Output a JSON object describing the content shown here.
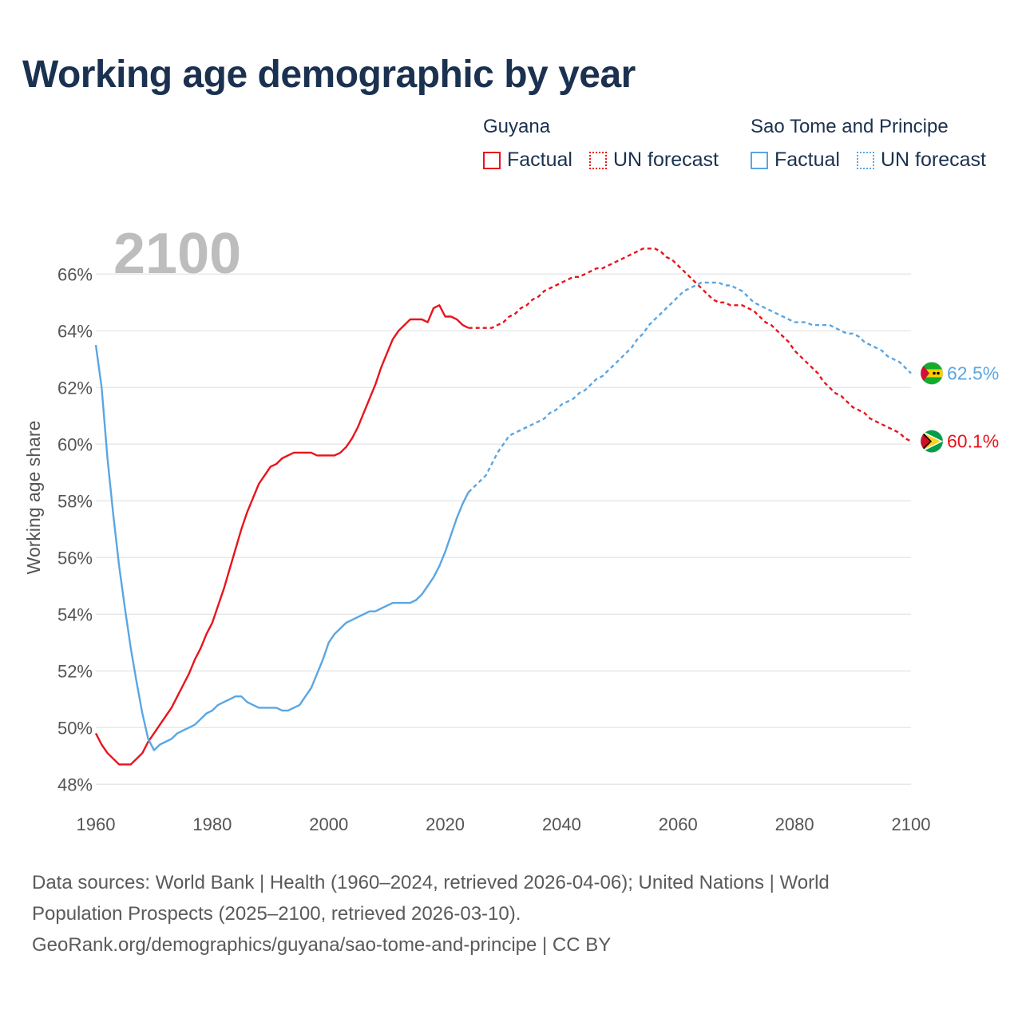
{
  "title": "Working age demographic by year",
  "legend": {
    "groups": [
      {
        "country": "Guyana",
        "color": "#e8141c",
        "factual_label": "Factual",
        "forecast_label": "UN forecast"
      },
      {
        "country": "Sao Tome and Principe",
        "color": "#5aa6e3",
        "factual_label": "Factual",
        "forecast_label": "UN forecast"
      }
    ]
  },
  "sources": {
    "line1": "Data sources: World Bank | Health (1960–2024, retrieved 2026-04-06); United Nations | World",
    "line2": "Population Prospects (2025–2100, retrieved 2026-03-10).",
    "line3": "GeoRank.org/demographics/guyana/sao-tome-and-principe | CC BY"
  },
  "chart_data": {
    "type": "line",
    "title": "Working age demographic by year",
    "xlabel": "",
    "ylabel": "Working age share",
    "year_overlay": "2100",
    "xlim": [
      1960,
      2100
    ],
    "ylim": [
      47.5,
      67.5
    ],
    "x_ticks": [
      1960,
      1980,
      2000,
      2020,
      2040,
      2060,
      2080,
      2100
    ],
    "x_tick_labels": [
      "1960",
      "1980",
      "2000",
      "2020",
      "2040",
      "2060",
      "2080",
      "2100"
    ],
    "y_ticks": [
      48,
      50,
      52,
      54,
      56,
      58,
      60,
      62,
      64,
      66
    ],
    "y_tick_labels": [
      "48%",
      "50%",
      "52%",
      "54%",
      "56%",
      "58%",
      "60%",
      "62%",
      "64%",
      "66%"
    ],
    "grid": true,
    "factual_end_year": 2024,
    "series": [
      {
        "name": "Guyana",
        "color": "#e8141c",
        "end_label": "60.1%",
        "points": [
          [
            1960,
            49.8
          ],
          [
            1961,
            49.4
          ],
          [
            1962,
            49.1
          ],
          [
            1963,
            48.9
          ],
          [
            1964,
            48.7
          ],
          [
            1965,
            48.7
          ],
          [
            1966,
            48.7
          ],
          [
            1967,
            48.9
          ],
          [
            1968,
            49.1
          ],
          [
            1969,
            49.5
          ],
          [
            1970,
            49.8
          ],
          [
            1971,
            50.1
          ],
          [
            1972,
            50.4
          ],
          [
            1973,
            50.7
          ],
          [
            1974,
            51.1
          ],
          [
            1975,
            51.5
          ],
          [
            1976,
            51.9
          ],
          [
            1977,
            52.4
          ],
          [
            1978,
            52.8
          ],
          [
            1979,
            53.3
          ],
          [
            1980,
            53.7
          ],
          [
            1981,
            54.3
          ],
          [
            1982,
            54.9
          ],
          [
            1983,
            55.6
          ],
          [
            1984,
            56.3
          ],
          [
            1985,
            57.0
          ],
          [
            1986,
            57.6
          ],
          [
            1987,
            58.1
          ],
          [
            1988,
            58.6
          ],
          [
            1989,
            58.9
          ],
          [
            1990,
            59.2
          ],
          [
            1991,
            59.3
          ],
          [
            1992,
            59.5
          ],
          [
            1993,
            59.6
          ],
          [
            1994,
            59.7
          ],
          [
            1995,
            59.7
          ],
          [
            1996,
            59.7
          ],
          [
            1997,
            59.7
          ],
          [
            1998,
            59.6
          ],
          [
            1999,
            59.6
          ],
          [
            2000,
            59.6
          ],
          [
            2001,
            59.6
          ],
          [
            2002,
            59.7
          ],
          [
            2003,
            59.9
          ],
          [
            2004,
            60.2
          ],
          [
            2005,
            60.6
          ],
          [
            2006,
            61.1
          ],
          [
            2007,
            61.6
          ],
          [
            2008,
            62.1
          ],
          [
            2009,
            62.7
          ],
          [
            2010,
            63.2
          ],
          [
            2011,
            63.7
          ],
          [
            2012,
            64.0
          ],
          [
            2013,
            64.2
          ],
          [
            2014,
            64.4
          ],
          [
            2015,
            64.4
          ],
          [
            2016,
            64.4
          ],
          [
            2017,
            64.3
          ],
          [
            2018,
            64.8
          ],
          [
            2019,
            64.9
          ],
          [
            2020,
            64.5
          ],
          [
            2021,
            64.5
          ],
          [
            2022,
            64.4
          ],
          [
            2023,
            64.2
          ],
          [
            2024,
            64.1
          ],
          [
            2025,
            64.1
          ],
          [
            2026,
            64.1
          ],
          [
            2027,
            64.1
          ],
          [
            2028,
            64.1
          ],
          [
            2029,
            64.2
          ],
          [
            2030,
            64.3
          ],
          [
            2031,
            64.5
          ],
          [
            2032,
            64.6
          ],
          [
            2033,
            64.8
          ],
          [
            2034,
            64.9
          ],
          [
            2035,
            65.1
          ],
          [
            2036,
            65.2
          ],
          [
            2037,
            65.4
          ],
          [
            2038,
            65.5
          ],
          [
            2039,
            65.6
          ],
          [
            2040,
            65.7
          ],
          [
            2041,
            65.8
          ],
          [
            2042,
            65.9
          ],
          [
            2043,
            65.9
          ],
          [
            2044,
            66.0
          ],
          [
            2045,
            66.1
          ],
          [
            2046,
            66.2
          ],
          [
            2047,
            66.2
          ],
          [
            2048,
            66.3
          ],
          [
            2049,
            66.4
          ],
          [
            2050,
            66.5
          ],
          [
            2051,
            66.6
          ],
          [
            2052,
            66.7
          ],
          [
            2053,
            66.8
          ],
          [
            2054,
            66.9
          ],
          [
            2055,
            66.9
          ],
          [
            2056,
            66.9
          ],
          [
            2057,
            66.8
          ],
          [
            2058,
            66.6
          ],
          [
            2059,
            66.5
          ],
          [
            2060,
            66.3
          ],
          [
            2061,
            66.1
          ],
          [
            2062,
            65.9
          ],
          [
            2063,
            65.7
          ],
          [
            2064,
            65.5
          ],
          [
            2065,
            65.3
          ],
          [
            2066,
            65.1
          ],
          [
            2067,
            65.0
          ],
          [
            2068,
            65.0
          ],
          [
            2069,
            64.9
          ],
          [
            2070,
            64.9
          ],
          [
            2071,
            64.9
          ],
          [
            2072,
            64.8
          ],
          [
            2073,
            64.7
          ],
          [
            2074,
            64.5
          ],
          [
            2075,
            64.3
          ],
          [
            2076,
            64.2
          ],
          [
            2077,
            64.0
          ],
          [
            2078,
            63.8
          ],
          [
            2079,
            63.6
          ],
          [
            2080,
            63.3
          ],
          [
            2081,
            63.1
          ],
          [
            2082,
            62.9
          ],
          [
            2083,
            62.7
          ],
          [
            2084,
            62.5
          ],
          [
            2085,
            62.2
          ],
          [
            2086,
            62.0
          ],
          [
            2087,
            61.8
          ],
          [
            2088,
            61.7
          ],
          [
            2089,
            61.5
          ],
          [
            2090,
            61.3
          ],
          [
            2091,
            61.2
          ],
          [
            2092,
            61.1
          ],
          [
            2093,
            60.9
          ],
          [
            2094,
            60.8
          ],
          [
            2095,
            60.7
          ],
          [
            2096,
            60.6
          ],
          [
            2097,
            60.5
          ],
          [
            2098,
            60.4
          ],
          [
            2099,
            60.2
          ],
          [
            2100,
            60.1
          ]
        ]
      },
      {
        "name": "Sao Tome and Principe",
        "color": "#5aa6e3",
        "end_label": "62.5%",
        "points": [
          [
            1960,
            63.5
          ],
          [
            1961,
            62.0
          ],
          [
            1962,
            59.5
          ],
          [
            1963,
            57.5
          ],
          [
            1964,
            55.7
          ],
          [
            1965,
            54.2
          ],
          [
            1966,
            52.8
          ],
          [
            1967,
            51.6
          ],
          [
            1968,
            50.5
          ],
          [
            1969,
            49.6
          ],
          [
            1970,
            49.2
          ],
          [
            1971,
            49.4
          ],
          [
            1972,
            49.5
          ],
          [
            1973,
            49.6
          ],
          [
            1974,
            49.8
          ],
          [
            1975,
            49.9
          ],
          [
            1976,
            50.0
          ],
          [
            1977,
            50.1
          ],
          [
            1978,
            50.3
          ],
          [
            1979,
            50.5
          ],
          [
            1980,
            50.6
          ],
          [
            1981,
            50.8
          ],
          [
            1982,
            50.9
          ],
          [
            1983,
            51.0
          ],
          [
            1984,
            51.1
          ],
          [
            1985,
            51.1
          ],
          [
            1986,
            50.9
          ],
          [
            1987,
            50.8
          ],
          [
            1988,
            50.7
          ],
          [
            1989,
            50.7
          ],
          [
            1990,
            50.7
          ],
          [
            1991,
            50.7
          ],
          [
            1992,
            50.6
          ],
          [
            1993,
            50.6
          ],
          [
            1994,
            50.7
          ],
          [
            1995,
            50.8
          ],
          [
            1996,
            51.1
          ],
          [
            1997,
            51.4
          ],
          [
            1998,
            51.9
          ],
          [
            1999,
            52.4
          ],
          [
            2000,
            53.0
          ],
          [
            2001,
            53.3
          ],
          [
            2002,
            53.5
          ],
          [
            2003,
            53.7
          ],
          [
            2004,
            53.8
          ],
          [
            2005,
            53.9
          ],
          [
            2006,
            54.0
          ],
          [
            2007,
            54.1
          ],
          [
            2008,
            54.1
          ],
          [
            2009,
            54.2
          ],
          [
            2010,
            54.3
          ],
          [
            2011,
            54.4
          ],
          [
            2012,
            54.4
          ],
          [
            2013,
            54.4
          ],
          [
            2014,
            54.4
          ],
          [
            2015,
            54.5
          ],
          [
            2016,
            54.7
          ],
          [
            2017,
            55.0
          ],
          [
            2018,
            55.3
          ],
          [
            2019,
            55.7
          ],
          [
            2020,
            56.2
          ],
          [
            2021,
            56.8
          ],
          [
            2022,
            57.4
          ],
          [
            2023,
            57.9
          ],
          [
            2024,
            58.3
          ],
          [
            2025,
            58.5
          ],
          [
            2026,
            58.7
          ],
          [
            2027,
            58.9
          ],
          [
            2028,
            59.3
          ],
          [
            2029,
            59.7
          ],
          [
            2030,
            60.0
          ],
          [
            2031,
            60.3
          ],
          [
            2032,
            60.4
          ],
          [
            2033,
            60.5
          ],
          [
            2034,
            60.6
          ],
          [
            2035,
            60.7
          ],
          [
            2036,
            60.8
          ],
          [
            2037,
            60.9
          ],
          [
            2038,
            61.1
          ],
          [
            2039,
            61.2
          ],
          [
            2040,
            61.4
          ],
          [
            2041,
            61.5
          ],
          [
            2042,
            61.6
          ],
          [
            2043,
            61.8
          ],
          [
            2044,
            61.9
          ],
          [
            2045,
            62.1
          ],
          [
            2046,
            62.3
          ],
          [
            2047,
            62.4
          ],
          [
            2048,
            62.6
          ],
          [
            2049,
            62.8
          ],
          [
            2050,
            63.0
          ],
          [
            2051,
            63.2
          ],
          [
            2052,
            63.4
          ],
          [
            2053,
            63.7
          ],
          [
            2054,
            63.9
          ],
          [
            2055,
            64.2
          ],
          [
            2056,
            64.4
          ],
          [
            2057,
            64.6
          ],
          [
            2058,
            64.8
          ],
          [
            2059,
            65.0
          ],
          [
            2060,
            65.2
          ],
          [
            2061,
            65.4
          ],
          [
            2062,
            65.5
          ],
          [
            2063,
            65.6
          ],
          [
            2064,
            65.7
          ],
          [
            2065,
            65.7
          ],
          [
            2066,
            65.7
          ],
          [
            2067,
            65.7
          ],
          [
            2068,
            65.6
          ],
          [
            2069,
            65.6
          ],
          [
            2070,
            65.5
          ],
          [
            2071,
            65.4
          ],
          [
            2072,
            65.2
          ],
          [
            2073,
            65.0
          ],
          [
            2074,
            64.9
          ],
          [
            2075,
            64.8
          ],
          [
            2076,
            64.7
          ],
          [
            2077,
            64.6
          ],
          [
            2078,
            64.5
          ],
          [
            2079,
            64.4
          ],
          [
            2080,
            64.3
          ],
          [
            2081,
            64.3
          ],
          [
            2082,
            64.3
          ],
          [
            2083,
            64.2
          ],
          [
            2084,
            64.2
          ],
          [
            2085,
            64.2
          ],
          [
            2086,
            64.2
          ],
          [
            2087,
            64.1
          ],
          [
            2088,
            64.0
          ],
          [
            2089,
            63.9
          ],
          [
            2090,
            63.9
          ],
          [
            2091,
            63.8
          ],
          [
            2092,
            63.6
          ],
          [
            2093,
            63.5
          ],
          [
            2094,
            63.4
          ],
          [
            2095,
            63.3
          ],
          [
            2096,
            63.1
          ],
          [
            2097,
            63.0
          ],
          [
            2098,
            62.9
          ],
          [
            2099,
            62.7
          ],
          [
            2100,
            62.5
          ]
        ]
      }
    ]
  },
  "flag_icons": [
    {
      "country": "Guyana",
      "icon": "guyana-flag-icon",
      "colors": [
        "#009e49",
        "#fcd116",
        "#ffffff",
        "#000000",
        "#ce1126"
      ]
    },
    {
      "country": "Sao Tome and Principe",
      "icon": "sao-tome-flag-icon",
      "colors": [
        "#12ad2b",
        "#ffce00",
        "#d21034",
        "#000000"
      ]
    }
  ],
  "colors": {
    "grid": "#e4e4e4",
    "axis_text": "#555555",
    "year_overlay": "#bdbdbd",
    "title": "#1b3150"
  }
}
